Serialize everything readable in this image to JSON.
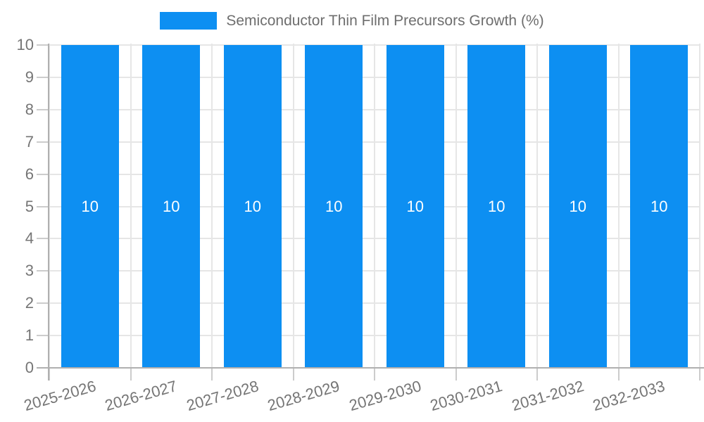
{
  "chart_data": {
    "type": "bar",
    "title": "Semiconductor Thin Film Precursors Growth (%)",
    "categories": [
      "2025-2026",
      "2026-2027",
      "2027-2028",
      "2028-2029",
      "2029-2030",
      "2030-2031",
      "2031-2032",
      "2032-2033"
    ],
    "series": [
      {
        "name": "Semiconductor Thin Film Precursors Growth (%)",
        "values": [
          10,
          10,
          10,
          10,
          10,
          10,
          10,
          10
        ]
      }
    ],
    "xlabel": "",
    "ylabel": "",
    "ylim": [
      0,
      10
    ],
    "y_ticks": [
      0,
      1,
      2,
      3,
      4,
      5,
      6,
      7,
      8,
      9,
      10
    ],
    "grid": true,
    "legend_position": "top-center",
    "bar_value_labels_shown": true,
    "colors": {
      "bar": "#0d8ff2",
      "grid": "#e6e6e6",
      "tick": "#cccccc",
      "axis": "#b0b0b0",
      "text": "#757575",
      "bar_label": "#ffffff",
      "background": "#ffffff"
    }
  }
}
